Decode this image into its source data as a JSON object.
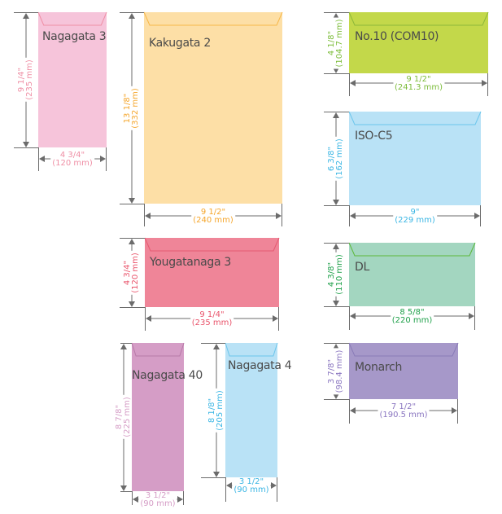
{
  "envelopes": [
    {
      "name": "Nagagata 3",
      "height_in": "9 1/4\"",
      "height_mm": "(235 mm)",
      "width_in": "4 3/4\"",
      "width_mm": "(120 mm)",
      "fill": "#f6c4da",
      "flap": "#ef8fa5",
      "text_color": "#ef8fa5"
    },
    {
      "name": "Kakugata 2",
      "height_in": "13 1/8\"",
      "height_mm": "(332 mm)",
      "width_in": "9 1/2\"",
      "width_mm": "(240 mm)",
      "fill": "#fddfa6",
      "flap": "#f8b84a",
      "text_color": "#f5a52a"
    },
    {
      "name": "No.10 (COM10)",
      "height_in": "4 1/8\"",
      "height_mm": "(104.7 mm)",
      "width_in": "9 1/2\"",
      "width_mm": "(241.3 mm)",
      "fill": "#c3d84a",
      "flap": "#8db83a",
      "text_color": "#7cbc3a"
    },
    {
      "name": "ISO-C5",
      "height_in": "6 3/8\"",
      "height_mm": "(162 mm)",
      "width_in": "9\"",
      "width_mm": "(229 mm)",
      "fill": "#b9e2f6",
      "flap": "#6cc6ec",
      "text_color": "#3bb6e4"
    },
    {
      "name": "Yougatanaga 3",
      "height_in": "4 3/4\"",
      "height_mm": "(120 mm)",
      "width_in": "9 1/4\"",
      "width_mm": "(235 mm)",
      "fill": "#ef8598",
      "flap": "#e55a72",
      "text_color": "#e9546b"
    },
    {
      "name": "DL",
      "height_in": "4 3/8\"",
      "height_mm": "(110 mm)",
      "width_in": "8 5/8\"",
      "width_mm": "(220 mm)",
      "fill": "#a3d6c0",
      "flap": "#5cb83a",
      "text_color": "#1fa04a"
    },
    {
      "name": "Nagagata 40",
      "height_in": "8 7/8\"",
      "height_mm": "(225 mm)",
      "width_in": "3 1/2\"",
      "width_mm": "(90 mm)",
      "fill": "#d59dc6",
      "flap": "#b77aa8",
      "text_color": "#d59dc6"
    },
    {
      "name": "Nagagata 4",
      "height_in": "8 1/8\"",
      "height_mm": "(205 mm)",
      "width_in": "3 1/2\"",
      "width_mm": "(90 mm)",
      "fill": "#b9e2f6",
      "flap": "#6cc6ec",
      "text_color": "#3bb6e4"
    },
    {
      "name": "Monarch",
      "height_in": "3 7/8\"",
      "height_mm": "(98.4 mm)",
      "width_in": "7 1/2\"",
      "width_mm": "(190.5 mm)",
      "fill": "#a698c9",
      "flap": "#8a7cb8",
      "text_color": "#8a76c0"
    }
  ],
  "colors": {
    "dimension_line": "#6b6b6b",
    "label_text": "#4a4a4a"
  }
}
